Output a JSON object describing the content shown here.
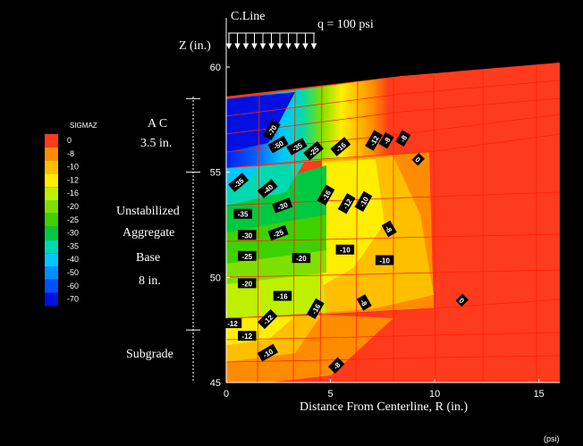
{
  "chart_data": {
    "type": "heatmap",
    "title": "",
    "xlabel": "Distance From Centerline, R (in.)",
    "ylabel": "Z (in.)",
    "xlim": [
      0,
      16
    ],
    "ylim": [
      45,
      60
    ],
    "xticks": [
      "0",
      "5",
      "10",
      "15"
    ],
    "yticks": [
      "45",
      "50",
      "55",
      "60"
    ],
    "centerline_label": "C.Line",
    "load_label": "q = 100 psi",
    "units_label": "(psi)",
    "legend": {
      "title": "SIGMAZ",
      "placement": "left",
      "entries": [
        {
          "label": "0",
          "color": "#ff3b1e"
        },
        {
          "label": "-8",
          "color": "#ff8c00"
        },
        {
          "label": "-10",
          "color": "#ffbf00"
        },
        {
          "label": "-12",
          "color": "#ffee00"
        },
        {
          "label": "-16",
          "color": "#bff000"
        },
        {
          "label": "-20",
          "color": "#7fe000"
        },
        {
          "label": "-25",
          "color": "#3fd000"
        },
        {
          "label": "-30",
          "color": "#00c840"
        },
        {
          "label": "-35",
          "color": "#00d8b0"
        },
        {
          "label": "-40",
          "color": "#00c8ff"
        },
        {
          "label": "-50",
          "color": "#0090ff"
        },
        {
          "label": "-60",
          "color": "#0050ff"
        },
        {
          "label": "-70",
          "color": "#0010e0"
        }
      ]
    },
    "layers": [
      {
        "name": "AC",
        "thickness": "3.5 in.",
        "z_top": 58.5,
        "z_bottom": 55.0
      },
      {
        "name": "Unstabilized Aggregate Base",
        "thickness": "8 in.",
        "z_top": 55.0,
        "z_bottom": 47.5
      },
      {
        "name": "Subgrade",
        "thickness": "",
        "z_top": 47.5,
        "z_bottom": 45.0
      }
    ],
    "layer_labels": {
      "ac_name": "A C",
      "ac_thickness": "3.5 in.",
      "base_line1": "Unstabilized",
      "base_line2": "Aggregate",
      "base_line3": "Base",
      "base_thickness": "8 in.",
      "subgrade": "Subgrade"
    },
    "contour_labels": [
      {
        "r": 2.2,
        "z": 57.0,
        "value": "-70",
        "angle": -60
      },
      {
        "r": 2.5,
        "z": 56.3,
        "value": "-50",
        "angle": -30
      },
      {
        "r": 3.4,
        "z": 56.2,
        "value": "-35",
        "angle": -30
      },
      {
        "r": 4.2,
        "z": 56.0,
        "value": "-25",
        "angle": -40
      },
      {
        "r": 5.5,
        "z": 56.2,
        "value": "-16",
        "angle": -40
      },
      {
        "r": 7.1,
        "z": 56.5,
        "value": "-12",
        "angle": -60
      },
      {
        "r": 7.7,
        "z": 56.5,
        "value": "-8",
        "angle": -60
      },
      {
        "r": 8.5,
        "z": 56.6,
        "value": "-8",
        "angle": -60
      },
      {
        "r": 9.2,
        "z": 55.6,
        "value": "0",
        "angle": 45
      },
      {
        "r": 0.6,
        "z": 54.5,
        "value": "-35",
        "angle": -40
      },
      {
        "r": 2.0,
        "z": 54.2,
        "value": "-40",
        "angle": -40
      },
      {
        "r": 4.8,
        "z": 53.9,
        "value": "-16",
        "angle": -60
      },
      {
        "r": 5.8,
        "z": 53.5,
        "value": "-12",
        "angle": -60
      },
      {
        "r": 6.6,
        "z": 53.6,
        "value": "-10",
        "angle": -60
      },
      {
        "r": 0.8,
        "z": 53.0,
        "value": "-35",
        "angle": 0
      },
      {
        "r": 2.7,
        "z": 53.4,
        "value": "-30",
        "angle": -20
      },
      {
        "r": 1.0,
        "z": 52.0,
        "value": "-30",
        "angle": 0
      },
      {
        "r": 2.5,
        "z": 52.1,
        "value": "-25",
        "angle": -20
      },
      {
        "r": 7.8,
        "z": 52.3,
        "value": "-8",
        "angle": 60
      },
      {
        "r": 5.7,
        "z": 51.3,
        "value": "-10",
        "angle": 0
      },
      {
        "r": 1.0,
        "z": 51.0,
        "value": "-25",
        "angle": 0
      },
      {
        "r": 3.6,
        "z": 50.9,
        "value": "-20",
        "angle": 0
      },
      {
        "r": 7.6,
        "z": 50.8,
        "value": "-10",
        "angle": 0
      },
      {
        "r": 1.0,
        "z": 49.7,
        "value": "-20",
        "angle": 0
      },
      {
        "r": 2.7,
        "z": 49.1,
        "value": "-16",
        "angle": 0
      },
      {
        "r": 6.6,
        "z": 48.8,
        "value": "-8",
        "angle": 60
      },
      {
        "r": 11.3,
        "z": 48.9,
        "value": "0",
        "angle": 45
      },
      {
        "r": 4.3,
        "z": 48.5,
        "value": "-16",
        "angle": -60
      },
      {
        "r": 2.0,
        "z": 48.0,
        "value": "-12",
        "angle": -45
      },
      {
        "r": 0.3,
        "z": 47.8,
        "value": "-12",
        "angle": 0
      },
      {
        "r": 1.0,
        "z": 47.2,
        "value": "-12",
        "angle": 0
      },
      {
        "r": 2.0,
        "z": 46.4,
        "value": "-10",
        "angle": -30
      },
      {
        "r": 5.3,
        "z": 45.8,
        "value": "-8",
        "angle": -45
      }
    ]
  }
}
